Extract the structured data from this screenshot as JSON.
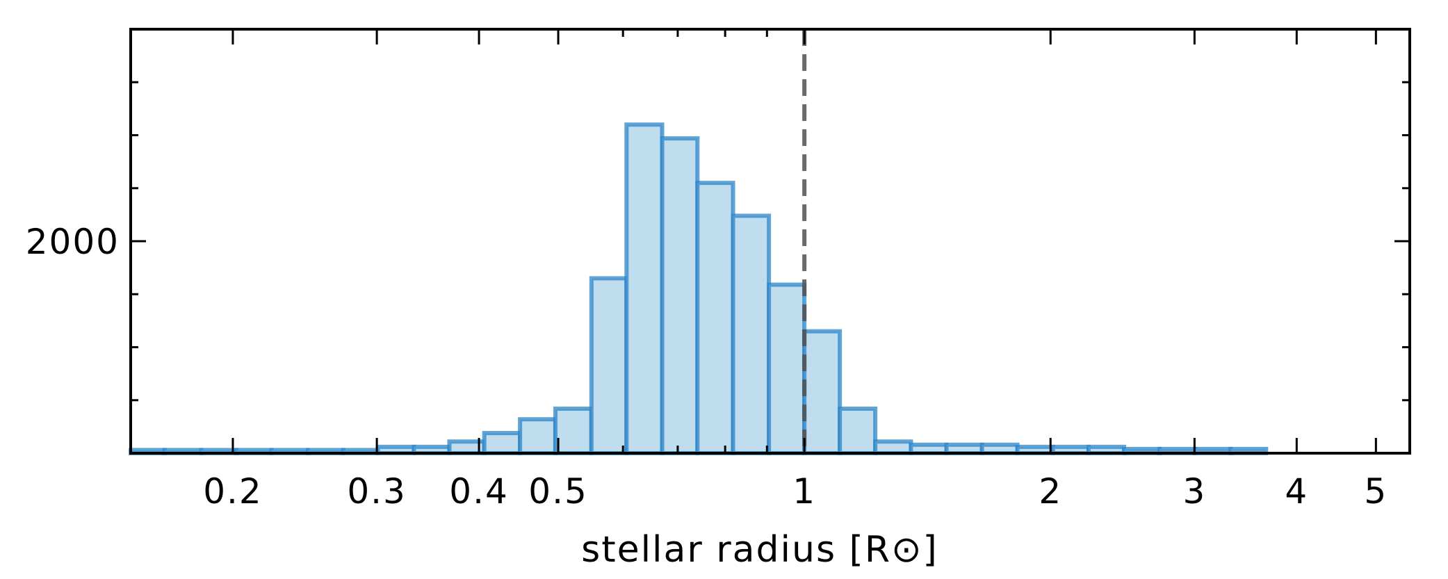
{
  "chart_data": {
    "type": "bar",
    "title": "",
    "xlabel": "stellar radius [R⊙]",
    "ylabel": "",
    "x_scale": "log",
    "xlim": [
      0.15,
      5.5
    ],
    "ylim": [
      0,
      4000
    ],
    "x_ticks": [
      {
        "value": 0.2,
        "label": "0.2"
      },
      {
        "value": 0.3,
        "label": "0.3"
      },
      {
        "value": 0.4,
        "label": "0.4"
      },
      {
        "value": 0.5,
        "label": "0.5"
      },
      {
        "value": 1,
        "label": "1"
      },
      {
        "value": 2,
        "label": "2"
      },
      {
        "value": 3,
        "label": "3"
      },
      {
        "value": 4,
        "label": "4"
      },
      {
        "value": 5,
        "label": "5"
      }
    ],
    "y_ticks": [
      {
        "value": 2000,
        "label": "2000"
      }
    ],
    "bins": [
      {
        "x0": 0.15,
        "x1": 0.165,
        "count": 30
      },
      {
        "x0": 0.165,
        "x1": 0.183,
        "count": 30
      },
      {
        "x0": 0.183,
        "x1": 0.202,
        "count": 30
      },
      {
        "x0": 0.202,
        "x1": 0.223,
        "count": 30
      },
      {
        "x0": 0.223,
        "x1": 0.247,
        "count": 30
      },
      {
        "x0": 0.247,
        "x1": 0.273,
        "count": 30
      },
      {
        "x0": 0.273,
        "x1": 0.301,
        "count": 30
      },
      {
        "x0": 0.301,
        "x1": 0.333,
        "count": 60
      },
      {
        "x0": 0.333,
        "x1": 0.368,
        "count": 60
      },
      {
        "x0": 0.368,
        "x1": 0.406,
        "count": 110
      },
      {
        "x0": 0.406,
        "x1": 0.449,
        "count": 190
      },
      {
        "x0": 0.449,
        "x1": 0.496,
        "count": 320
      },
      {
        "x0": 0.496,
        "x1": 0.549,
        "count": 420
      },
      {
        "x0": 0.549,
        "x1": 0.606,
        "count": 1650
      },
      {
        "x0": 0.606,
        "x1": 0.67,
        "count": 3100
      },
      {
        "x0": 0.67,
        "x1": 0.74,
        "count": 2970
      },
      {
        "x0": 0.74,
        "x1": 0.818,
        "count": 2550
      },
      {
        "x0": 0.818,
        "x1": 0.905,
        "count": 2240
      },
      {
        "x0": 0.905,
        "x1": 1.0,
        "count": 1590
      },
      {
        "x0": 1.0,
        "x1": 1.105,
        "count": 1150
      },
      {
        "x0": 1.105,
        "x1": 1.221,
        "count": 420
      },
      {
        "x0": 1.221,
        "x1": 1.35,
        "count": 110
      },
      {
        "x0": 1.35,
        "x1": 1.492,
        "count": 80
      },
      {
        "x0": 1.492,
        "x1": 1.649,
        "count": 80
      },
      {
        "x0": 1.649,
        "x1": 1.822,
        "count": 80
      },
      {
        "x0": 1.822,
        "x1": 2.014,
        "count": 60
      },
      {
        "x0": 2.014,
        "x1": 2.226,
        "count": 60
      },
      {
        "x0": 2.226,
        "x1": 2.46,
        "count": 60
      },
      {
        "x0": 2.46,
        "x1": 2.718,
        "count": 40
      },
      {
        "x0": 2.718,
        "x1": 3.004,
        "count": 40
      },
      {
        "x0": 3.004,
        "x1": 3.32,
        "count": 40
      },
      {
        "x0": 3.32,
        "x1": 3.67,
        "count": 40
      }
    ],
    "reference_line": {
      "x": 1,
      "style": "dashed"
    },
    "grid": false,
    "colors": {
      "bar_fill": "#c0dcef",
      "bar_edge": "#2c86c8",
      "reference_line": "#505050",
      "axis": "#000000"
    }
  }
}
